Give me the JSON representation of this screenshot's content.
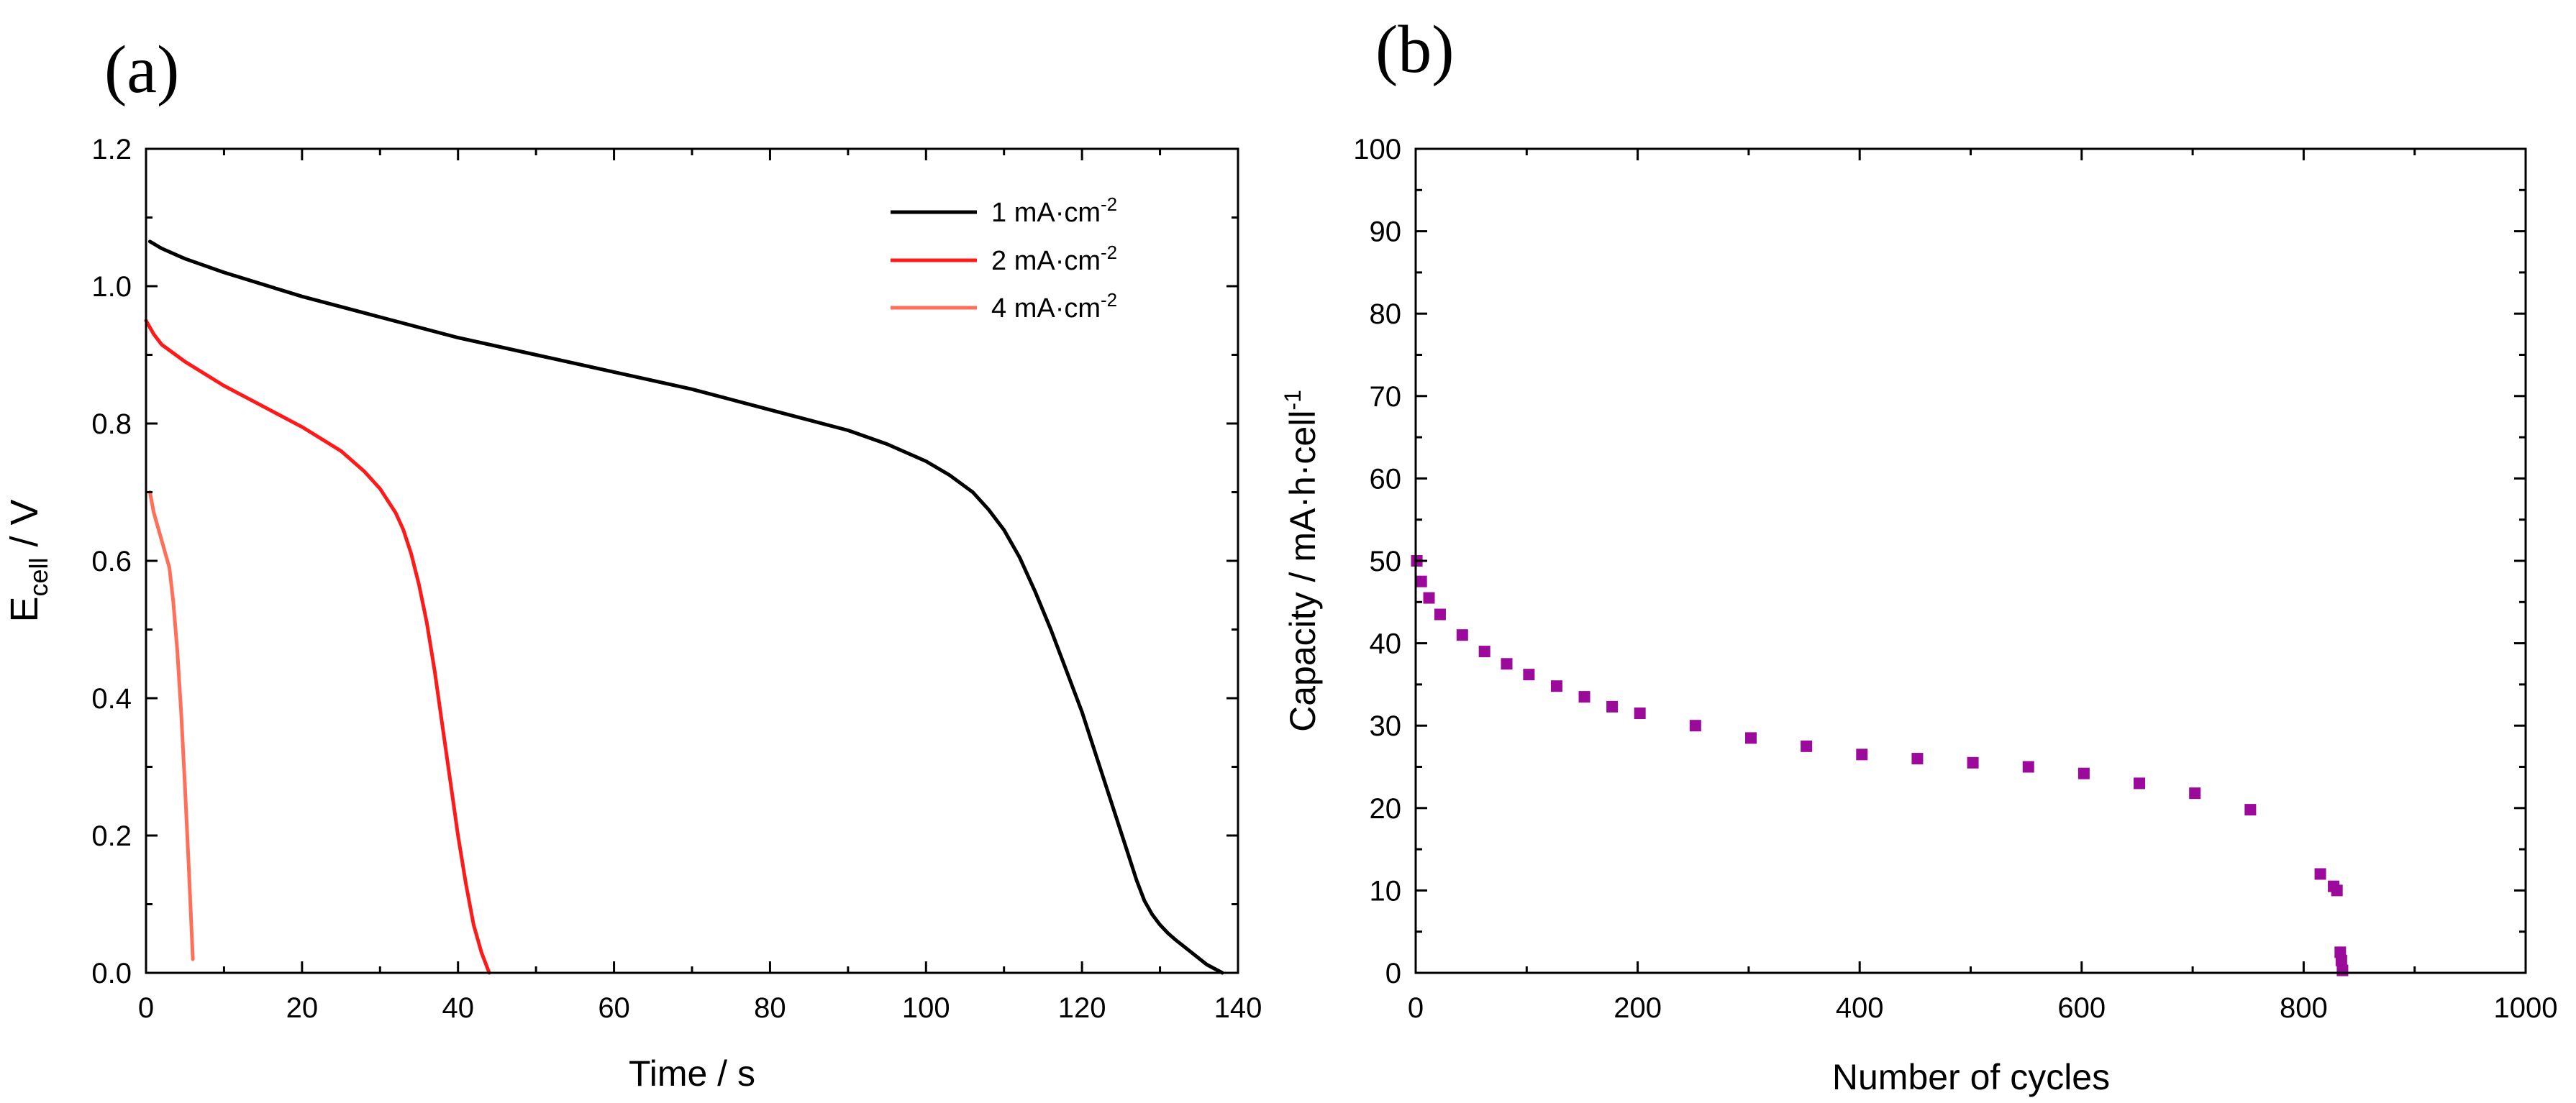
{
  "chart_data": [
    {
      "panel": "(a)",
      "type": "line",
      "xlabel": "Time / s",
      "ylabel_main": "E",
      "ylabel_sub": "cell",
      "ylabel_rest": " / V",
      "xlim": [
        0,
        140
      ],
      "ylim": [
        0,
        1.2
      ],
      "xticks": [
        "0",
        "20",
        "40",
        "60",
        "80",
        "100",
        "120",
        "140"
      ],
      "yticks": [
        "0.0",
        "0.2",
        "0.4",
        "0.6",
        "0.8",
        "1.0",
        "1.2"
      ],
      "legend_position": "top-right",
      "series": [
        {
          "name": "1 mA·cm",
          "name_sup": "-2",
          "color": "#000000",
          "x": [
            0.5,
            2,
            5,
            10,
            20,
            30,
            40,
            50,
            60,
            70,
            80,
            90,
            95,
            100,
            103,
            106,
            108,
            110,
            112,
            114,
            116,
            118,
            120,
            122,
            124,
            126,
            127,
            128,
            129,
            130,
            131,
            132,
            134,
            136,
            138
          ],
          "y": [
            1.065,
            1.055,
            1.04,
            1.02,
            0.985,
            0.955,
            0.925,
            0.9,
            0.875,
            0.85,
            0.82,
            0.79,
            0.77,
            0.745,
            0.725,
            0.7,
            0.675,
            0.645,
            0.605,
            0.555,
            0.5,
            0.44,
            0.38,
            0.31,
            0.24,
            0.17,
            0.135,
            0.105,
            0.085,
            0.07,
            0.058,
            0.048,
            0.03,
            0.012,
            0.0
          ]
        },
        {
          "name": "2 mA·cm",
          "name_sup": "-2",
          "color": "#ff1a1a",
          "x": [
            0,
            1,
            2,
            5,
            10,
            15,
            20,
            25,
            28,
            30,
            32,
            33,
            34,
            35,
            36,
            37,
            38,
            39,
            40,
            41,
            42,
            43,
            44
          ],
          "y": [
            0.95,
            0.93,
            0.915,
            0.89,
            0.855,
            0.825,
            0.795,
            0.76,
            0.73,
            0.705,
            0.67,
            0.645,
            0.61,
            0.565,
            0.51,
            0.44,
            0.36,
            0.28,
            0.2,
            0.13,
            0.07,
            0.03,
            0.0
          ]
        },
        {
          "name": "4 mA·cm",
          "name_sup": "-2",
          "color": "#ff6f5a",
          "x": [
            0.5,
            1,
            2,
            3,
            3.5,
            4,
            4.5,
            5,
            5.5,
            6
          ],
          "y": [
            0.7,
            0.67,
            0.63,
            0.59,
            0.54,
            0.47,
            0.38,
            0.27,
            0.15,
            0.02
          ]
        }
      ]
    },
    {
      "panel": "(b)",
      "type": "scatter",
      "xlabel": "Number of cycles",
      "ylabel_main": "Capacity / mA·h·cell",
      "ylabel_sup": "-1",
      "xlim": [
        0,
        1000
      ],
      "ylim": [
        0,
        100
      ],
      "xticks": [
        "0",
        "200",
        "400",
        "600",
        "800",
        "1000"
      ],
      "yticks": [
        "0",
        "10",
        "20",
        "30",
        "40",
        "50",
        "60",
        "70",
        "80",
        "90",
        "100"
      ],
      "series": [
        {
          "name": "Capacity",
          "color": "#9b0a9b",
          "x": [
            1,
            5,
            12,
            22,
            42,
            62,
            82,
            102,
            127,
            152,
            177,
            202,
            252,
            302,
            352,
            402,
            452,
            502,
            552,
            602,
            652,
            702,
            752,
            815,
            827,
            830,
            833,
            834,
            835
          ],
          "y": [
            50,
            47.5,
            45.5,
            43.5,
            41,
            39,
            37.5,
            36.2,
            34.8,
            33.5,
            32.3,
            31.5,
            30,
            28.5,
            27.5,
            26.5,
            26,
            25.5,
            25,
            24.2,
            23,
            21.8,
            19.8,
            12,
            10.5,
            10,
            2.5,
            1.5,
            0.3
          ]
        }
      ]
    }
  ]
}
